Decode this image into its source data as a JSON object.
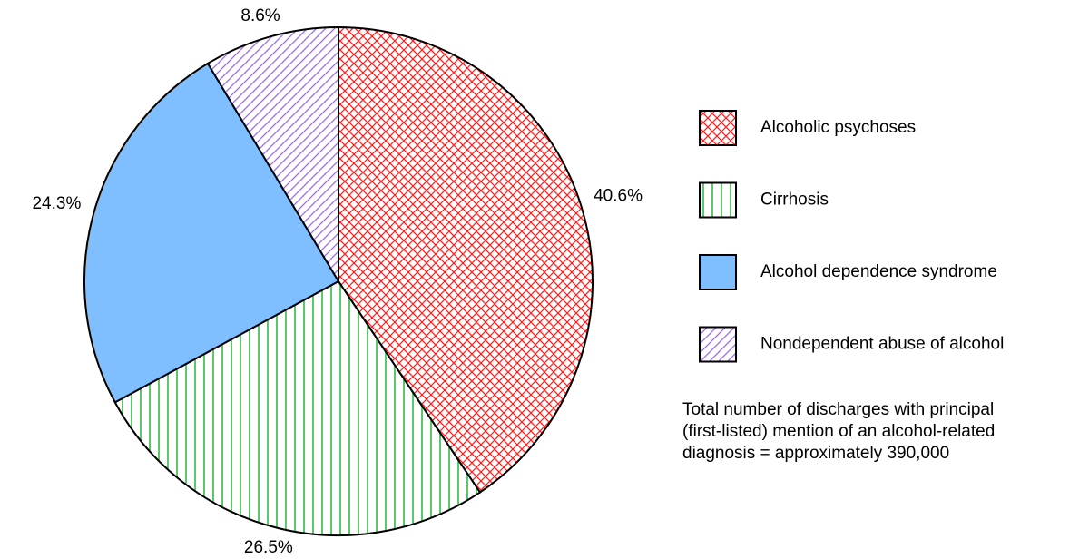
{
  "chart_data": {
    "type": "pie",
    "categories": [
      "Alcoholic psychoses",
      "Cirrhosis",
      "Alcohol dependence syndrome",
      "Nondependent abuse of alcohol"
    ],
    "values": [
      40.6,
      26.5,
      24.3,
      8.6
    ],
    "value_labels": [
      "40.6%",
      "26.5%",
      "24.3%",
      "8.6%"
    ],
    "colors": [
      "#ff2020",
      "#33bb44",
      "#80bfff",
      "#a066ff"
    ],
    "patterns": [
      "crosshatch",
      "vertical",
      "solid",
      "diagonal"
    ],
    "note": [
      "Total number of discharges with principal",
      "(first-listed) mention of an alcohol-related",
      "diagnosis = approximately 390,000"
    ]
  }
}
